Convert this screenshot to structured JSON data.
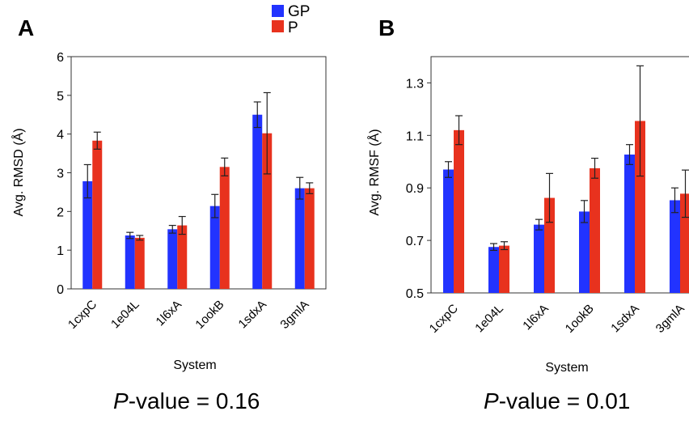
{
  "legend": {
    "items": [
      {
        "label": "GP",
        "color": "#2233ff"
      },
      {
        "label": "P",
        "color": "#e8321e"
      }
    ]
  },
  "panels": [
    {
      "letter": "A",
      "pvalue_var": "P",
      "pvalue_rest": "-value = 0.16"
    },
    {
      "letter": "B",
      "pvalue_var": "P",
      "pvalue_rest": "-value = 0.01"
    }
  ],
  "chart_data": [
    {
      "type": "bar",
      "panel": "A",
      "xlabel": "System",
      "ylabel": "Avg. RMSD (Å)",
      "ylim": [
        0,
        6
      ],
      "yticks": [
        0,
        1,
        2,
        3,
        4,
        5,
        6
      ],
      "ytick_labels": [
        "0",
        "1",
        "2",
        "3",
        "4",
        "5",
        "6"
      ],
      "categories": [
        "1cxpC",
        "1e04L",
        "1l6xA",
        "1ookB",
        "1sdxA",
        "3gmlA"
      ],
      "series": [
        {
          "name": "GP",
          "color": "#2233ff",
          "values": [
            2.78,
            1.38,
            1.54,
            2.14,
            4.5,
            2.6
          ],
          "errors": [
            0.43,
            0.08,
            0.1,
            0.3,
            0.33,
            0.28
          ]
        },
        {
          "name": "P",
          "color": "#e8321e",
          "values": [
            3.83,
            1.32,
            1.64,
            3.15,
            4.02,
            2.6
          ],
          "errors": [
            0.22,
            0.06,
            0.23,
            0.23,
            1.05,
            0.14
          ]
        }
      ]
    },
    {
      "type": "bar",
      "panel": "B",
      "xlabel": "System",
      "ylabel": "Avg. RMSF (Å)",
      "ylim": [
        0.5,
        1.4
      ],
      "yticks": [
        0.5,
        0.7,
        0.9,
        1.1,
        1.3
      ],
      "ytick_labels": [
        "0.5",
        "0.7",
        "0.9",
        "1.1",
        "1.3"
      ],
      "categories": [
        "1cxpC",
        "1e04L",
        "1l6xA",
        "1ookB",
        "1sdxA",
        "3gmlA"
      ],
      "series": [
        {
          "name": "GP",
          "color": "#2233ff",
          "values": [
            0.97,
            0.675,
            0.76,
            0.81,
            1.027,
            0.853
          ],
          "errors": [
            0.03,
            0.013,
            0.02,
            0.042,
            0.038,
            0.047
          ]
        },
        {
          "name": "P",
          "color": "#e8321e",
          "values": [
            1.12,
            0.68,
            0.862,
            0.975,
            1.155,
            0.878
          ],
          "errors": [
            0.055,
            0.015,
            0.093,
            0.038,
            0.21,
            0.09
          ]
        }
      ]
    }
  ]
}
